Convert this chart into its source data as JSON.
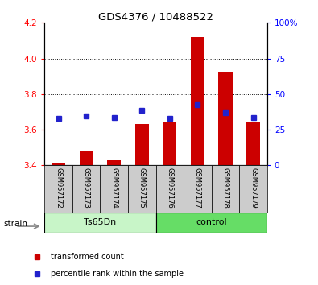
{
  "title": "GDS4376 / 10488522",
  "samples": [
    "GSM957172",
    "GSM957173",
    "GSM957174",
    "GSM957175",
    "GSM957176",
    "GSM957177",
    "GSM957178",
    "GSM957179"
  ],
  "red_values": [
    3.41,
    3.48,
    3.43,
    3.63,
    3.64,
    4.12,
    3.92,
    3.64
  ],
  "blue_values": [
    3.665,
    3.675,
    3.668,
    3.71,
    3.665,
    3.74,
    3.695,
    3.668
  ],
  "baseline": 3.4,
  "ylim_left": [
    3.4,
    4.2
  ],
  "ylim_right": [
    0,
    100
  ],
  "yticks_left": [
    3.4,
    3.6,
    3.8,
    4.0,
    4.2
  ],
  "yticks_right": [
    0,
    25,
    50,
    75,
    100
  ],
  "ytick_labels_right": [
    "0",
    "25",
    "50",
    "75",
    "100%"
  ],
  "group1": {
    "label": "Ts65Dn",
    "indices": [
      0,
      1,
      2,
      3
    ],
    "color": "#c8f5c8"
  },
  "group2": {
    "label": "control",
    "indices": [
      4,
      5,
      6,
      7
    ],
    "color": "#66dd66"
  },
  "strain_label": "strain",
  "bar_color": "#cc0000",
  "dot_color": "#2222cc",
  "bar_width": 0.5,
  "bg_color": "#cccccc",
  "legend_red": "transformed count",
  "legend_blue": "percentile rank within the sample"
}
